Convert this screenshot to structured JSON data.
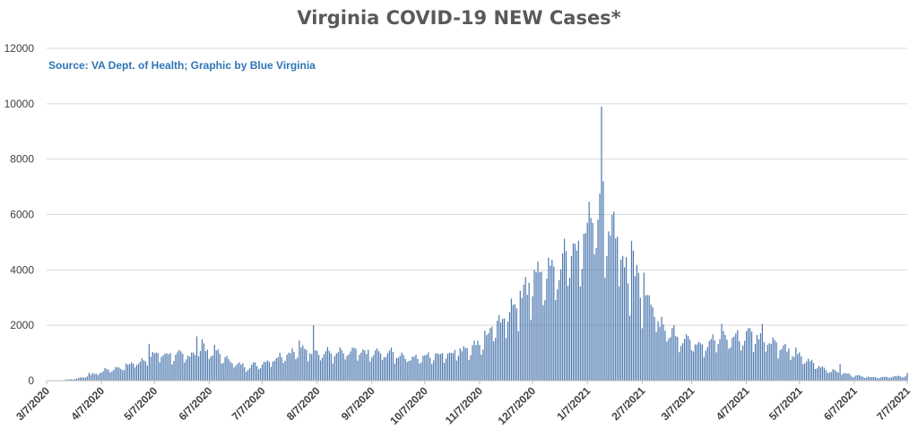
{
  "chart_data": {
    "type": "bar",
    "title": "Virginia COVID-19 NEW Cases*",
    "annotation": "Source: VA Dept. of Health; Graphic by Blue Virginia",
    "xlabel": "",
    "ylabel": "",
    "ylim": [
      0,
      12000
    ],
    "y_ticks": [
      0,
      2000,
      4000,
      6000,
      8000,
      10000,
      12000
    ],
    "x_ticks": [
      "3/7/2020",
      "4/7/2020",
      "5/7/2020",
      "6/7/2020",
      "7/7/2020",
      "8/7/2020",
      "9/7/2020",
      "10/7/2020",
      "11/7/2020",
      "12/7/2020",
      "1/7/2021",
      "2/7/2021",
      "3/7/2021",
      "4/7/2021",
      "5/7/2021",
      "6/7/2021",
      "7/7/2021"
    ],
    "grid": true,
    "bar_color": "#4f7ab0",
    "series": [
      {
        "values": [
          [
            "3/7/2020",
            0
          ],
          [
            "3/14/2020",
            10
          ],
          [
            "3/21/2020",
            50
          ],
          [
            "3/28/2020",
            120
          ],
          [
            "4/4/2020",
            250
          ],
          [
            "4/11/2020",
            400
          ],
          [
            "4/18/2020",
            450
          ],
          [
            "4/25/2020",
            600
          ],
          [
            "5/2/2020",
            750
          ],
          [
            "5/9/2020",
            950
          ],
          [
            "5/16/2020",
            900
          ],
          [
            "5/23/2020",
            850
          ],
          [
            "5/30/2020",
            950
          ],
          [
            "6/6/2020",
            1100
          ],
          [
            "6/13/2020",
            900
          ],
          [
            "6/20/2020",
            650
          ],
          [
            "6/27/2020",
            500
          ],
          [
            "7/4/2020",
            550
          ],
          [
            "7/11/2020",
            700
          ],
          [
            "7/18/2020",
            900
          ],
          [
            "7/25/2020",
            1000
          ],
          [
            "8/1/2020",
            1100
          ],
          [
            "8/8/2020",
            1000
          ],
          [
            "8/15/2020",
            950
          ],
          [
            "8/22/2020",
            950
          ],
          [
            "8/29/2020",
            1000
          ],
          [
            "9/5/2020",
            950
          ],
          [
            "9/12/2020",
            950
          ],
          [
            "9/19/2020",
            950
          ],
          [
            "9/26/2020",
            850
          ],
          [
            "10/3/2020",
            800
          ],
          [
            "10/10/2020",
            850
          ],
          [
            "10/17/2020",
            950
          ],
          [
            "10/24/2020",
            1000
          ],
          [
            "10/31/2020",
            1150
          ],
          [
            "11/7/2020",
            1300
          ],
          [
            "11/14/2020",
            1700
          ],
          [
            "11/21/2020",
            2300
          ],
          [
            "11/28/2020",
            2600
          ],
          [
            "12/5/2020",
            3300
          ],
          [
            "12/12/2020",
            3700
          ],
          [
            "12/19/2020",
            3900
          ],
          [
            "12/26/2020",
            4200
          ],
          [
            "1/2/2021",
            5000
          ],
          [
            "1/9/2021",
            5200
          ],
          [
            "1/16/2021",
            5600
          ],
          [
            "1/23/2021",
            4900
          ],
          [
            "1/30/2021",
            3700
          ],
          [
            "2/6/2021",
            3100
          ],
          [
            "2/13/2021",
            2300
          ],
          [
            "2/20/2021",
            1800
          ],
          [
            "2/27/2021",
            1600
          ],
          [
            "3/6/2021",
            1400
          ],
          [
            "3/13/2021",
            1300
          ],
          [
            "3/20/2021",
            1400
          ],
          [
            "3/27/2021",
            1500
          ],
          [
            "4/3/2021",
            1500
          ],
          [
            "4/10/2021",
            1600
          ],
          [
            "4/17/2021",
            1500
          ],
          [
            "4/24/2021",
            1300
          ],
          [
            "5/1/2021",
            1000
          ],
          [
            "5/8/2021",
            800
          ],
          [
            "5/15/2021",
            600
          ],
          [
            "5/22/2021",
            400
          ],
          [
            "5/29/2021",
            300
          ],
          [
            "6/5/2021",
            200
          ],
          [
            "6/12/2021",
            150
          ],
          [
            "6/19/2021",
            120
          ],
          [
            "6/26/2021",
            130
          ],
          [
            "7/3/2021",
            150
          ],
          [
            "7/7/2021",
            180
          ]
        ],
        "spikes": [
          [
            "3/31/2020",
            280
          ],
          [
            "4/21/2020",
            620
          ],
          [
            "5/4/2020",
            1320
          ],
          [
            "5/31/2020",
            1600
          ],
          [
            "6/3/2020",
            1500
          ],
          [
            "6/10/2020",
            1300
          ],
          [
            "8/5/2020",
            2000
          ],
          [
            "7/28/2020",
            1450
          ],
          [
            "11/10/2020",
            1800
          ],
          [
            "11/19/2020",
            2100
          ],
          [
            "11/30/2020",
            3250
          ],
          [
            "12/4/2020",
            3100
          ],
          [
            "12/8/2020",
            4000
          ],
          [
            "12/10/2020",
            4300
          ],
          [
            "12/17/2020",
            4150
          ],
          [
            "12/29/2020",
            4500
          ],
          [
            "1/1/2021",
            4700
          ],
          [
            "1/5/2021",
            5300
          ],
          [
            "1/10/2021",
            5700
          ],
          [
            "1/14/2021",
            6750
          ],
          [
            "1/15/2021",
            9900
          ],
          [
            "1/16/2021",
            7200
          ],
          [
            "1/18/2021",
            4500
          ],
          [
            "1/22/2021",
            6100
          ],
          [
            "1/24/2021",
            5200
          ],
          [
            "2/1/2021",
            5050
          ],
          [
            "2/2/2021",
            4700
          ],
          [
            "2/8/2021",
            3900
          ],
          [
            "2/14/2021",
            2300
          ],
          [
            "3/24/2021",
            2050
          ],
          [
            "4/9/2021",
            1900
          ],
          [
            "4/16/2021",
            2050
          ],
          [
            "5/5/2021",
            1200
          ],
          [
            "5/30/2021",
            600
          ],
          [
            "7/7/2021",
            280
          ]
        ]
      }
    ]
  }
}
